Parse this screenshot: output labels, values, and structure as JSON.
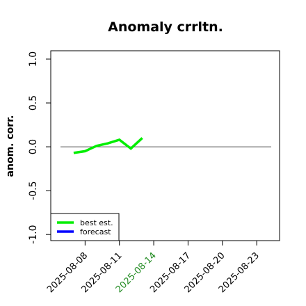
{
  "chart_data": {
    "type": "line",
    "title": "Anomaly crrltn.",
    "y_label": "anom. corr.",
    "x": [
      "2025-08-07",
      "2025-08-08",
      "2025-08-09",
      "2025-08-10",
      "2025-08-11",
      "2025-08-12",
      "2025-08-13"
    ],
    "series": [
      {
        "name": "best est.",
        "color": "#00ee00",
        "values": [
          -0.07,
          -0.05,
          0.01,
          0.04,
          0.08,
          -0.02,
          0.1
        ]
      },
      {
        "name": "forecast",
        "color": "#0000ff",
        "values": [
          null,
          null,
          null,
          null,
          null,
          null,
          null
        ]
      }
    ],
    "xlim": [
      "2025-08-05",
      "2025-08-25"
    ],
    "xticks": [
      "2025-08-08",
      "2025-08-11",
      "2025-08-14",
      "2025-08-17",
      "2025-08-20",
      "2025-08-23"
    ],
    "highlighted_xtick": "2025-08-14",
    "highlight_color": "#228b22",
    "ylim": [
      -1.07,
      1.095
    ],
    "yticks": [
      {
        "value": -1,
        "label": "-1.0"
      },
      {
        "value": -0.5,
        "label": "-0.5"
      },
      {
        "value": 0,
        "label": "0.0"
      },
      {
        "value": 0.5,
        "label": "0.5"
      },
      {
        "value": 1,
        "label": "1.0"
      }
    ],
    "reference_line": 0,
    "legend": "bottom-left"
  }
}
